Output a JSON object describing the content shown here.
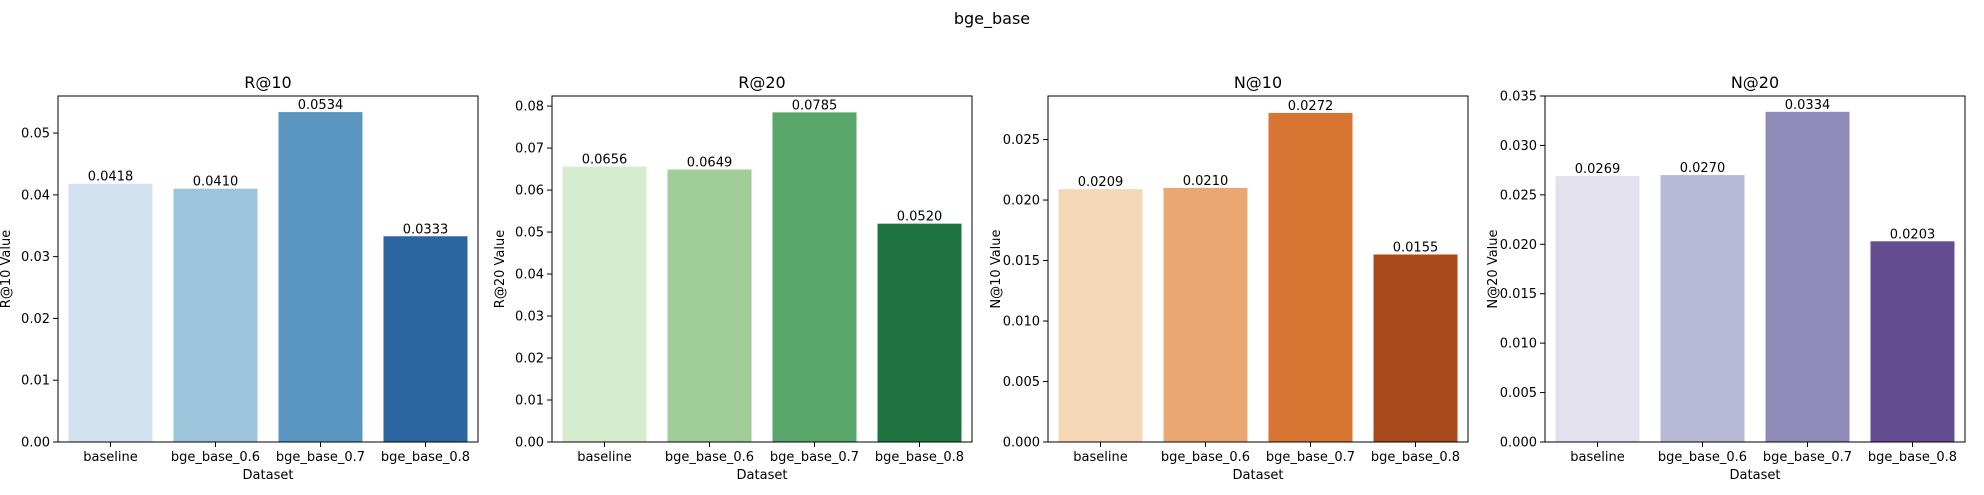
{
  "figure": {
    "suptitle": "bge_base"
  },
  "chart_data": [
    {
      "type": "bar",
      "title": "R@10",
      "xlabel": "Dataset",
      "ylabel": "R@10 Value",
      "categories": [
        "baseline",
        "bge_base_0.6",
        "bge_base_0.7",
        "bge_base_0.8"
      ],
      "values": [
        0.0418,
        0.041,
        0.0534,
        0.0333
      ],
      "value_labels": [
        "0.0418",
        "0.0410",
        "0.0534",
        "0.0333"
      ],
      "colors": [
        "#d3e2f1",
        "#9cc4da",
        "#5a96bf",
        "#2b66a0"
      ],
      "ylim": [
        0,
        0.056
      ],
      "yticks": [
        0,
        0.01,
        0.02,
        0.03,
        0.04,
        0.05
      ],
      "ytick_labels": [
        "0.00",
        "0.01",
        "0.02",
        "0.03",
        "0.04",
        "0.05"
      ]
    },
    {
      "type": "bar",
      "title": "R@20",
      "xlabel": "Dataset",
      "ylabel": "R@20 Value",
      "categories": [
        "baseline",
        "bge_base_0.6",
        "bge_base_0.7",
        "bge_base_0.8"
      ],
      "values": [
        0.0656,
        0.0649,
        0.0785,
        0.052
      ],
      "value_labels": [
        "0.0656",
        "0.0649",
        "0.0785",
        "0.0520"
      ],
      "colors": [
        "#d5eccf",
        "#a0cd98",
        "#59a66b",
        "#207442"
      ],
      "ylim": [
        0,
        0.0824
      ],
      "yticks": [
        0,
        0.01,
        0.02,
        0.03,
        0.04,
        0.05,
        0.06,
        0.07,
        0.08
      ],
      "ytick_labels": [
        "0.00",
        "0.01",
        "0.02",
        "0.03",
        "0.04",
        "0.05",
        "0.06",
        "0.07",
        "0.08"
      ]
    },
    {
      "type": "bar",
      "title": "N@10",
      "xlabel": "Dataset",
      "ylabel": "N@10 Value",
      "categories": [
        "baseline",
        "bge_base_0.6",
        "bge_base_0.7",
        "bge_base_0.8"
      ],
      "values": [
        0.0209,
        0.021,
        0.0272,
        0.0155
      ],
      "value_labels": [
        "0.0209",
        "0.0210",
        "0.0272",
        "0.0155"
      ],
      "colors": [
        "#f4d7b7",
        "#eba771",
        "#d87533",
        "#a94a1a"
      ],
      "ylim": [
        0,
        0.0286
      ],
      "yticks": [
        0,
        0.005,
        0.01,
        0.015,
        0.02,
        0.025
      ],
      "ytick_labels": [
        "0.000",
        "0.005",
        "0.010",
        "0.015",
        "0.020",
        "0.025"
      ]
    },
    {
      "type": "bar",
      "title": "N@20",
      "xlabel": "Dataset",
      "ylabel": "N@20 Value",
      "categories": [
        "baseline",
        "bge_base_0.6",
        "bge_base_0.7",
        "bge_base_0.8"
      ],
      "values": [
        0.0269,
        0.027,
        0.0334,
        0.0203
      ],
      "value_labels": [
        "0.0269",
        "0.0270",
        "0.0334",
        "0.0203"
      ],
      "colors": [
        "#e2e1ed",
        "#b8b8d7",
        "#8e8bb9",
        "#644c90"
      ],
      "ylim": [
        0,
        0.035
      ],
      "yticks": [
        0,
        0.005,
        0.01,
        0.015,
        0.02,
        0.025,
        0.03,
        0.035
      ],
      "ytick_labels": [
        "0.000",
        "0.005",
        "0.010",
        "0.015",
        "0.020",
        "0.025",
        "0.030",
        "0.035"
      ]
    }
  ]
}
